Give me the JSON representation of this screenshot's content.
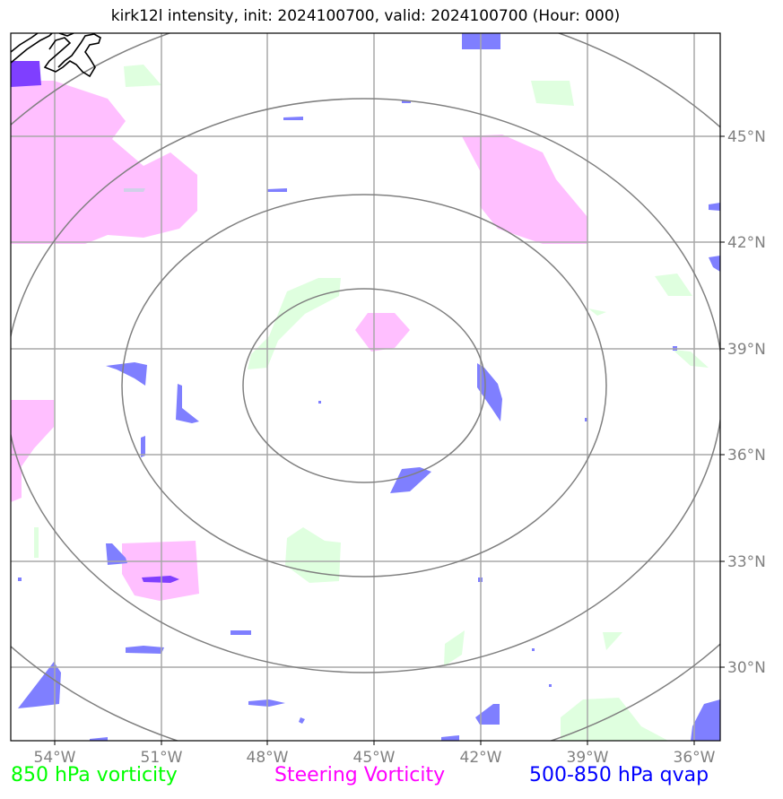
{
  "title": "kirk12l intensity, init: 2024100700, valid: 2024100700 (Hour: 000)",
  "map": {
    "lon_range": [
      -56,
      -35.5
    ],
    "lat_range": [
      28,
      48.5
    ],
    "lon_ticks": [
      {
        "value": -54,
        "label": "54°W"
      },
      {
        "value": -51,
        "label": "51°W"
      },
      {
        "value": -48,
        "label": "48°W"
      },
      {
        "value": -45,
        "label": "45°W"
      },
      {
        "value": -42,
        "label": "42°W"
      },
      {
        "value": -39,
        "label": "39°W"
      },
      {
        "value": -36,
        "label": "36°W"
      }
    ],
    "lat_ticks": [
      {
        "value": 45,
        "label": "45°N"
      },
      {
        "value": 42,
        "label": "42°N"
      },
      {
        "value": 39,
        "label": "39°N"
      },
      {
        "value": 36,
        "label": "36°N"
      },
      {
        "value": 33,
        "label": "33°N"
      },
      {
        "value": 30,
        "label": "30°N"
      }
    ],
    "range_rings_center": {
      "lon": -45.3,
      "lat": 38
    },
    "grid": true,
    "colors": {
      "vort850": "#dfffdf",
      "steering": "#ffbfff",
      "qvap": "#7f7fff",
      "qvap_dark": "#7f3fff",
      "grid": "#a0a0a0",
      "ring": "#808080",
      "coast": "#000000"
    }
  },
  "legend": {
    "left": {
      "label": "850 hPa vorticity",
      "color": "#00ff00"
    },
    "mid": {
      "label": "Steering Vorticity",
      "color": "#ff00ff"
    },
    "right": {
      "label": "500-850 hPa qvap",
      "color": "#0000ff"
    }
  }
}
